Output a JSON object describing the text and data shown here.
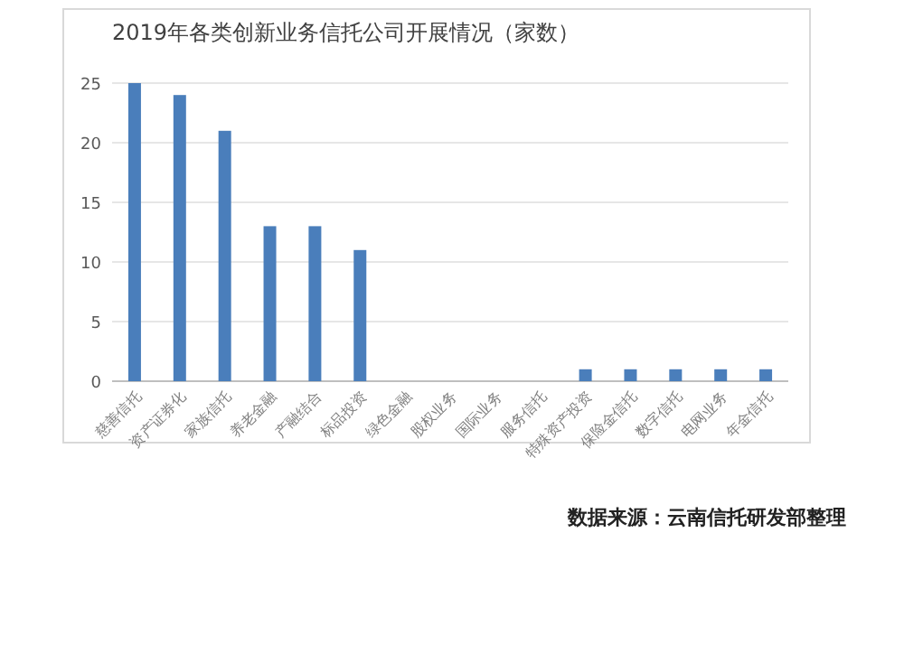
{
  "chart_data": {
    "type": "bar",
    "title": "2019年各类创新业务信托公司开展情况（家数）",
    "categories": [
      "慈善信托",
      "资产证券化",
      "家族信托",
      "养老金融",
      "产融结合",
      "标品投资",
      "绿色金融",
      "股权业务",
      "国际业务",
      "服务信托",
      "特殊资产投资",
      "保险金信托",
      "数字信托",
      "电网业务",
      "年金信托"
    ],
    "values": [
      25,
      24,
      21,
      13,
      13,
      11,
      null,
      null,
      null,
      null,
      1,
      1,
      1,
      1,
      1
    ],
    "color": "#4a7ebb",
    "ylim": [
      0,
      25
    ],
    "yticks": [
      0,
      5,
      10,
      15,
      20,
      25
    ],
    "grid": "y",
    "annotations": [
      "数据来源：云南信托研发部整理"
    ]
  }
}
